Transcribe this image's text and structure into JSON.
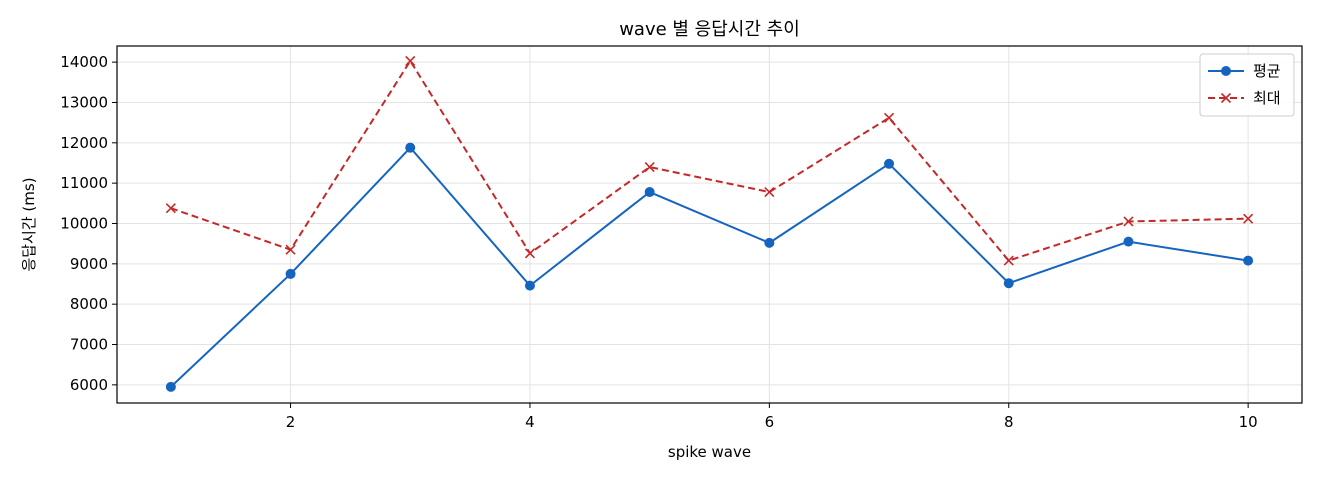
{
  "chart_data": {
    "type": "line",
    "title": "wave 별 응답시간 추이",
    "xlabel": "spike wave",
    "ylabel": "응답시간 (ms)",
    "x": [
      1,
      2,
      3,
      4,
      5,
      6,
      7,
      8,
      9,
      10
    ],
    "xlim": [
      0.55,
      10.45
    ],
    "ylim": [
      5550,
      14400
    ],
    "xticks": [
      2,
      4,
      6,
      8,
      10
    ],
    "yticks": [
      6000,
      7000,
      8000,
      9000,
      10000,
      11000,
      12000,
      13000,
      14000
    ],
    "grid": true,
    "legend_position": "top-right",
    "series": [
      {
        "name": "평균",
        "color": "#1565c0",
        "line_style": "solid",
        "marker": "circle",
        "values": [
          5950,
          8750,
          11880,
          8460,
          10780,
          9520,
          11480,
          8520,
          9550,
          9080
        ]
      },
      {
        "name": "최대",
        "color": "#c62828",
        "line_style": "dashed",
        "marker": "x",
        "values": [
          10380,
          9350,
          14030,
          9260,
          11400,
          10780,
          12620,
          9080,
          10050,
          10120
        ]
      }
    ]
  }
}
